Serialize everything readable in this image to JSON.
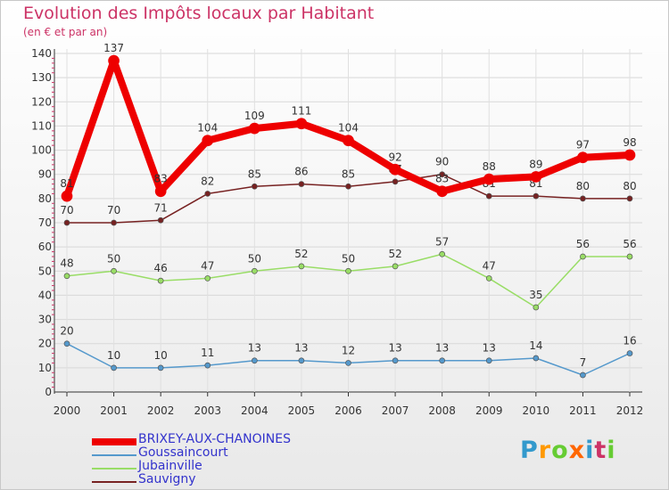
{
  "title": "Evolution des Impôts locaux par Habitant",
  "subtitle": "(en € et par an)",
  "logo": {
    "text": "Proxiti",
    "colors": [
      "#3399cc",
      "#ff9900",
      "#66cc33",
      "#ff6600",
      "#3399cc",
      "#cc3366",
      "#66cc33"
    ]
  },
  "chart_data": {
    "type": "line",
    "x": [
      "2000",
      "2001",
      "2002",
      "2003",
      "2004",
      "2005",
      "2006",
      "2007",
      "2008",
      "2009",
      "2010",
      "2011",
      "2012"
    ],
    "ylim": [
      0,
      140
    ],
    "yticks": [
      0,
      10,
      20,
      30,
      40,
      50,
      60,
      70,
      80,
      90,
      100,
      110,
      120,
      130,
      140
    ],
    "grid": true,
    "legend_position": "bottom-left",
    "series": [
      {
        "name": "BRIXEY-AUX-CHANOINES",
        "color": "#ee0000",
        "width": 8,
        "values": [
          81,
          137,
          83,
          104,
          109,
          111,
          104,
          92,
          83,
          88,
          89,
          97,
          98
        ]
      },
      {
        "name": "Goussaincourt",
        "color": "#5599cc",
        "width": 1.5,
        "values": [
          20,
          10,
          10,
          11,
          13,
          13,
          12,
          13,
          13,
          13,
          14,
          7,
          16
        ]
      },
      {
        "name": "Jubainville",
        "color": "#99dd66",
        "width": 1.5,
        "values": [
          48,
          50,
          46,
          47,
          50,
          52,
          50,
          52,
          57,
          47,
          35,
          56,
          56
        ]
      },
      {
        "name": "Sauvigny",
        "color": "#772222",
        "width": 1.5,
        "values": [
          70,
          70,
          71,
          82,
          85,
          86,
          85,
          87,
          90,
          81,
          81,
          80,
          80
        ]
      }
    ]
  }
}
